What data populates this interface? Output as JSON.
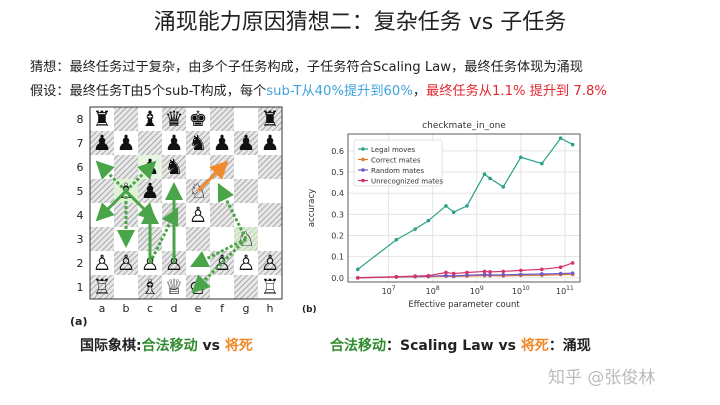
{
  "title": "涌现能力原因猜想二：复杂任务 vs 子任务",
  "line1": {
    "text": "猜想：最终任务过于复杂，由多个子任务构成，子任务符合Scaling Law，最终任务体现为涌现"
  },
  "line2": {
    "prefix": "假设：最终任务T由5个sub-T构成，每个",
    "blue": "sub-T从40%提升到60%",
    "sep": "，",
    "red": "最终任务从1.1%  提升到 7.8%"
  },
  "board": {
    "label": "(a)",
    "files": [
      "a",
      "b",
      "c",
      "d",
      "e",
      "f",
      "g",
      "h"
    ],
    "ranks": [
      "8",
      "7",
      "6",
      "5",
      "4",
      "3",
      "2",
      "1"
    ],
    "pieces": [
      {
        "sq": "a8",
        "g": "♜"
      },
      {
        "sq": "c8",
        "g": "♝"
      },
      {
        "sq": "d8",
        "g": "♛"
      },
      {
        "sq": "e8",
        "g": "♚"
      },
      {
        "sq": "h8",
        "g": "♜"
      },
      {
        "sq": "a7",
        "g": "♟"
      },
      {
        "sq": "b7",
        "g": "♟"
      },
      {
        "sq": "d7",
        "g": "♟"
      },
      {
        "sq": "e7",
        "g": "♞"
      },
      {
        "sq": "f7",
        "g": "♟"
      },
      {
        "sq": "g7",
        "g": "♟"
      },
      {
        "sq": "h7",
        "g": "♟"
      },
      {
        "sq": "c6",
        "g": "♟"
      },
      {
        "sq": "d6",
        "g": "♞"
      },
      {
        "sq": "b5",
        "g": "♗"
      },
      {
        "sq": "c5",
        "g": "♟"
      },
      {
        "sq": "e5",
        "g": "♘"
      },
      {
        "sq": "e4",
        "g": "♙"
      },
      {
        "sq": "a2",
        "g": "♙"
      },
      {
        "sq": "b2",
        "g": "♙"
      },
      {
        "sq": "c2",
        "g": "♙"
      },
      {
        "sq": "d2",
        "g": "♙"
      },
      {
        "sq": "f2",
        "g": "♙"
      },
      {
        "sq": "g2",
        "g": "♙"
      },
      {
        "sq": "h2",
        "g": "♙"
      },
      {
        "sq": "a1",
        "g": "♖"
      },
      {
        "sq": "c1",
        "g": "♗"
      },
      {
        "sq": "d1",
        "g": "♕"
      },
      {
        "sq": "e1",
        "g": "♔"
      },
      {
        "sq": "h1",
        "g": "♖"
      },
      {
        "sq": "g3",
        "g": "♘"
      }
    ],
    "colors": {
      "green": "#4aa54a",
      "orange": "#f08a2a",
      "highlight": "#d6efc9"
    }
  },
  "chart_data": {
    "type": "line",
    "title": "checkmate_in_one",
    "xlabel": "Effective parameter count",
    "ylabel": "accuracy",
    "panel_label": "(b)",
    "xscale": "log",
    "xticks": [
      "10^7",
      "10^8",
      "10^9",
      "10^10",
      "10^11"
    ],
    "xtick_values": [
      10000000.0,
      100000000.0,
      1000000000.0,
      10000000000.0,
      100000000000.0
    ],
    "yticks": [
      "0.0",
      "0.1",
      "0.2",
      "0.3",
      "0.4",
      "0.5",
      "0.6"
    ],
    "ylim": [
      -0.02,
      0.68
    ],
    "xlim": [
      1200000.0,
      220000000000.0
    ],
    "legend_position": "top-left",
    "x": [
      2000000.0,
      15000000.0,
      40000000.0,
      80000000.0,
      200000000.0,
      300000000.0,
      600000000.0,
      1500000000.0,
      2000000000.0,
      4000000000.0,
      10000000000.0,
      30000000000.0,
      80000000000.0,
      150000000000.0
    ],
    "series": [
      {
        "name": "Legal moves",
        "color": "#2ca089",
        "values": [
          0.04,
          0.18,
          0.23,
          0.27,
          0.34,
          0.31,
          0.34,
          0.49,
          0.47,
          0.43,
          0.57,
          0.54,
          0.66,
          0.63
        ]
      },
      {
        "name": "Correct mates",
        "color": "#e07b30",
        "values": [
          0.0,
          0.003,
          0.005,
          0.005,
          0.007,
          0.006,
          0.008,
          0.01,
          0.01,
          0.009,
          0.011,
          0.012,
          0.015,
          0.016
        ]
      },
      {
        "name": "Random mates",
        "color": "#6a5acd",
        "values": [
          0.0,
          0.004,
          0.006,
          0.007,
          0.01,
          0.009,
          0.012,
          0.015,
          0.013,
          0.014,
          0.016,
          0.018,
          0.02,
          0.022
        ]
      },
      {
        "name": "Unrecognized mates",
        "color": "#d6336c",
        "values": [
          0.0,
          0.005,
          0.008,
          0.01,
          0.025,
          0.02,
          0.025,
          0.03,
          0.028,
          0.03,
          0.035,
          0.04,
          0.05,
          0.07
        ]
      }
    ]
  },
  "caption_left": {
    "a": "国际象棋:",
    "b": "合法移动",
    "c": " vs ",
    "d": "将死"
  },
  "caption_right": {
    "a": "合法移动",
    "b": "：Scaling Law  vs  ",
    "c": "将死",
    "d": "：涌现"
  },
  "watermark": "知乎 @张俊林"
}
